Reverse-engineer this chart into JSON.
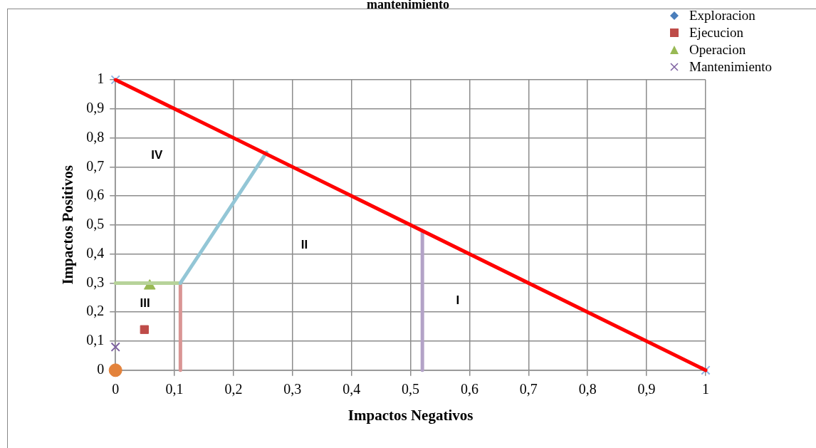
{
  "chart_data": {
    "type": "scatter",
    "title": "mantenimiento",
    "xlabel": "Impactos Negativos",
    "ylabel": "Impactos Positivos",
    "xlim": [
      0,
      1
    ],
    "ylim": [
      0,
      1
    ],
    "xticks": [
      0,
      {
        "value": 0.1,
        "label": "0,1"
      },
      {
        "value": 0.2,
        "label": "0,2"
      },
      {
        "value": 0.3,
        "label": "0,3"
      },
      {
        "value": 0.4,
        "label": "0,4"
      },
      {
        "value": 0.5,
        "label": "0,5"
      },
      {
        "value": 0.6,
        "label": "0,6"
      },
      {
        "value": 0.7,
        "label": "0,7"
      },
      {
        "value": 0.8,
        "label": "0,8"
      },
      {
        "value": 0.9,
        "label": "0,9"
      },
      1
    ],
    "yticks": [
      0,
      {
        "value": 0.1,
        "label": "0,1"
      },
      {
        "value": 0.2,
        "label": "0,2"
      },
      {
        "value": 0.3,
        "label": "0,3"
      },
      {
        "value": 0.4,
        "label": "0,4"
      },
      {
        "value": 0.5,
        "label": "0,5"
      },
      {
        "value": 0.6,
        "label": "0,6"
      },
      {
        "value": 0.7,
        "label": "0,7"
      },
      {
        "value": 0.8,
        "label": "0,8"
      },
      {
        "value": 0.9,
        "label": "0,9"
      },
      1
    ],
    "grid": true,
    "legend": "top right",
    "series": [
      {
        "type": "line",
        "color": "#ff0000",
        "x": [
          0,
          1
        ],
        "values": [
          1,
          0
        ],
        "marker": "none"
      },
      {
        "type": "scatter",
        "color": "#8eb4e3",
        "x": [
          0,
          1
        ],
        "values": [
          1,
          0
        ],
        "marker": "cross"
      },
      {
        "type": "line",
        "color": "#93c6d6",
        "x": [
          0.11,
          0.256
        ],
        "values": [
          0.3,
          0.75
        ],
        "marker": "none"
      },
      {
        "type": "line",
        "color": "#b7d39a",
        "x": [
          0,
          0.11
        ],
        "values": [
          0.3,
          0.3
        ],
        "marker": "none"
      },
      {
        "type": "line",
        "color": "#d99594",
        "x": [
          0.11,
          0.11
        ],
        "values": [
          0,
          0.3
        ],
        "marker": "none"
      },
      {
        "type": "line",
        "color": "#b3a2c7",
        "x": [
          0.52,
          0.52
        ],
        "values": [
          0,
          0.48
        ],
        "marker": "none"
      },
      {
        "name": "Exploracion",
        "color": "#4a7ebb",
        "marker": "diamond"
      },
      {
        "name": "Ejecucion",
        "color": "#be4b48",
        "x": [
          0.049
        ],
        "values": [
          0.14
        ],
        "marker": "square"
      },
      {
        "name": "Operacion",
        "color": "#98b954",
        "x": [
          0.058
        ],
        "values": [
          0.29
        ],
        "marker": "triangle"
      },
      {
        "name": "Mantenimiento",
        "color": "#7d60a0",
        "x": [
          0
        ],
        "values": [
          0.08
        ],
        "marker": "cross"
      },
      {
        "color": "#e3823b",
        "x": [
          0
        ],
        "values": [
          0
        ],
        "marker": "circle"
      }
    ],
    "annotations": [
      "IV",
      "II",
      "III",
      "I"
    ]
  }
}
